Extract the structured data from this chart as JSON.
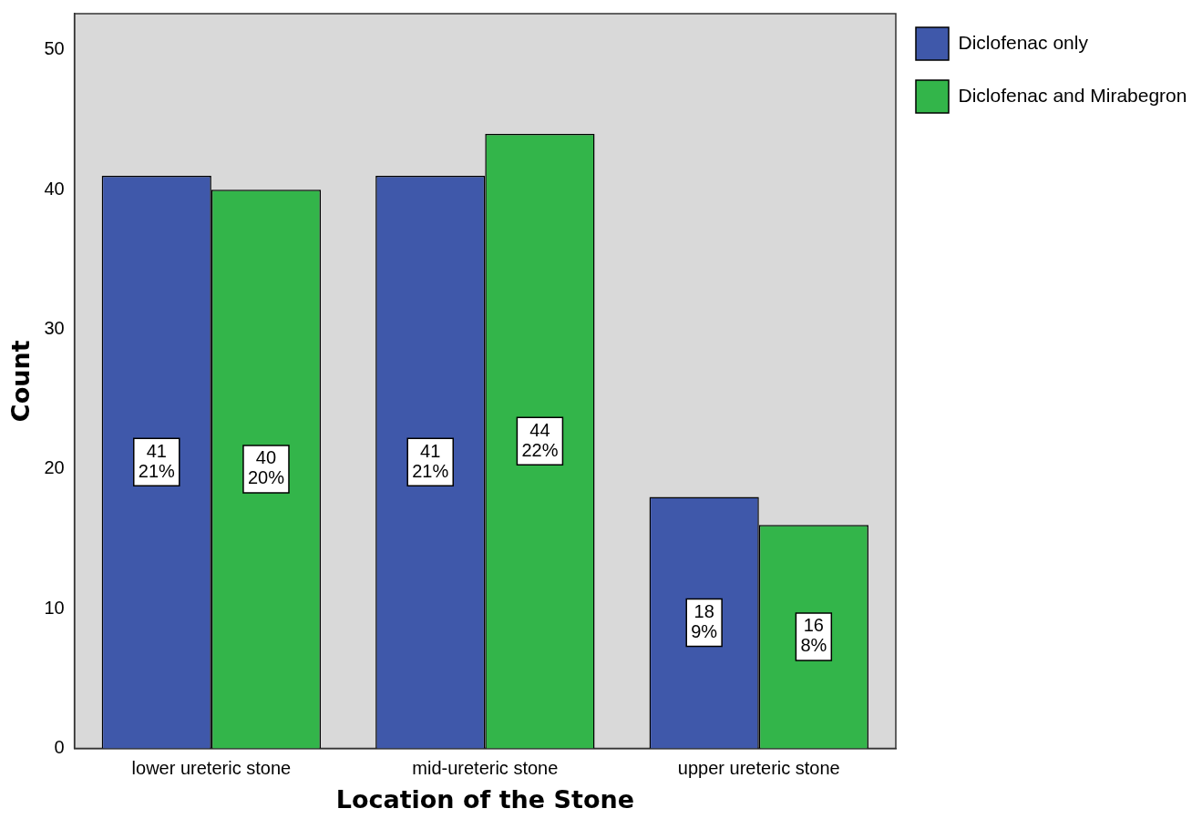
{
  "chart_data": {
    "type": "bar",
    "xlabel": "Location of the Stone",
    "ylabel": "Count",
    "categories": [
      "lower ureteric stone",
      "mid-ureteric stone",
      "upper ureteric stone"
    ],
    "series": [
      {
        "name": "Diclofenac only",
        "color": "#3f58aa",
        "values": [
          41,
          41,
          18
        ],
        "value_labels": [
          "41\n21%",
          "41\n21%",
          "18\n9%"
        ]
      },
      {
        "name": "Diclofenac and Mirabegron",
        "color": "#33b54a",
        "values": [
          40,
          44,
          16
        ],
        "value_labels": [
          "40\n20%",
          "44\n22%",
          "16\n8%"
        ]
      }
    ],
    "ylim": [
      0,
      52.6
    ],
    "yticks": [
      0,
      10,
      20,
      30,
      40,
      50
    ],
    "grid": false,
    "legend": "top right"
  }
}
